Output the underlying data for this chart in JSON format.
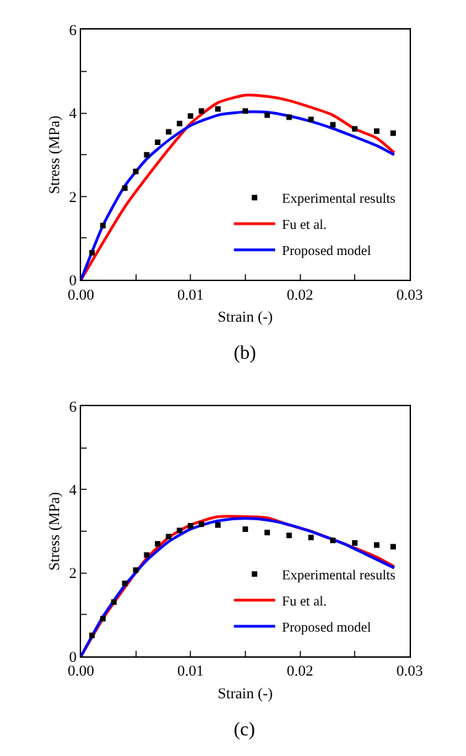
{
  "chart_data": [
    {
      "type": "line",
      "xlabel": "Strain (-)",
      "ylabel": "Stress (MPa)",
      "annotations": [
        "(b)"
      ],
      "xlim": [
        0,
        0.03
      ],
      "ylim": [
        0,
        6
      ],
      "xticks": [
        {
          "value": 0,
          "label": "0.00"
        },
        {
          "value": 0.005,
          "label": null
        },
        0.01,
        {
          "value": 0.015,
          "label": null
        },
        0.02,
        {
          "value": 0.025,
          "label": null
        },
        0.03
      ],
      "yticks": [
        0,
        {
          "value": 1,
          "label": null
        },
        2,
        {
          "value": 3,
          "label": null
        },
        4,
        {
          "value": 5,
          "label": null
        },
        6
      ],
      "legend": "bottom right",
      "series": [
        {
          "name": "Experimental results",
          "type": "scatter",
          "marker": "square",
          "color": "#000000",
          "x": [
            0.001,
            0.002,
            0.004,
            0.005,
            0.006,
            0.007,
            0.008,
            0.009,
            0.01,
            0.011,
            0.0125,
            0.015,
            0.017,
            0.019,
            0.021,
            0.023,
            0.025,
            0.027,
            0.0285
          ],
          "values": [
            0.65,
            1.3,
            2.2,
            2.6,
            3.0,
            3.3,
            3.55,
            3.75,
            3.93,
            4.05,
            4.1,
            4.05,
            3.95,
            3.9,
            3.85,
            3.72,
            3.62,
            3.57,
            3.52
          ]
        },
        {
          "name": "Fu et al.",
          "color": "#ff0000",
          "x": [
            0,
            0.004,
            0.007,
            0.009,
            0.01,
            0.0125,
            0.015,
            0.017,
            0.019,
            0.023,
            0.025,
            0.027,
            0.0286
          ],
          "values": [
            0,
            1.75,
            2.8,
            3.45,
            3.75,
            4.25,
            4.43,
            4.4,
            4.3,
            3.95,
            3.62,
            3.4,
            3.05
          ]
        },
        {
          "name": "Proposed model",
          "color": "#0000ff",
          "x": [
            0,
            0.002,
            0.004,
            0.006,
            0.008,
            0.01,
            0.0125,
            0.015,
            0.017,
            0.019,
            0.021,
            0.023,
            0.025,
            0.027,
            0.0286
          ],
          "values": [
            0,
            1.3,
            2.25,
            2.9,
            3.35,
            3.7,
            3.95,
            4.03,
            4.02,
            3.93,
            3.8,
            3.63,
            3.43,
            3.22,
            3.0
          ]
        }
      ]
    },
    {
      "type": "line",
      "xlabel": "Strain (-)",
      "ylabel": "Stress (MPa)",
      "annotations": [
        "(c)"
      ],
      "xlim": [
        0,
        0.03
      ],
      "ylim": [
        0,
        6
      ],
      "xticks": [
        {
          "value": 0,
          "label": "0.00"
        },
        {
          "value": 0.005,
          "label": null
        },
        0.01,
        {
          "value": 0.015,
          "label": null
        },
        0.02,
        {
          "value": 0.025,
          "label": null
        },
        0.03
      ],
      "yticks": [
        0,
        {
          "value": 1,
          "label": null
        },
        2,
        {
          "value": 3,
          "label": null
        },
        4,
        {
          "value": 5,
          "label": null
        },
        6
      ],
      "legend": "bottom right",
      "series": [
        {
          "name": "Experimental results",
          "type": "scatter",
          "marker": "square",
          "color": "#000000",
          "x": [
            0.001,
            0.002,
            0.003,
            0.004,
            0.005,
            0.006,
            0.007,
            0.008,
            0.009,
            0.01,
            0.011,
            0.0125,
            0.015,
            0.017,
            0.019,
            0.021,
            0.023,
            0.025,
            0.027,
            0.0285
          ],
          "values": [
            0.5,
            0.9,
            1.3,
            1.75,
            2.07,
            2.43,
            2.7,
            2.87,
            3.02,
            3.13,
            3.17,
            3.15,
            3.05,
            2.97,
            2.9,
            2.85,
            2.78,
            2.72,
            2.67,
            2.63
          ]
        },
        {
          "name": "Fu et al.",
          "color": "#ff0000",
          "x": [
            0,
            0.002,
            0.004,
            0.006,
            0.008,
            0.01,
            0.0125,
            0.015,
            0.017,
            0.019,
            0.021,
            0.023,
            0.025,
            0.027,
            0.0286
          ],
          "values": [
            0,
            0.9,
            1.65,
            2.35,
            2.85,
            3.15,
            3.35,
            3.35,
            3.32,
            3.15,
            3.0,
            2.8,
            2.6,
            2.38,
            2.15
          ]
        },
        {
          "name": "Proposed model",
          "color": "#0000ff",
          "x": [
            0,
            0.002,
            0.004,
            0.006,
            0.008,
            0.01,
            0.012,
            0.014,
            0.016,
            0.018,
            0.02,
            0.022,
            0.024,
            0.026,
            0.0286
          ],
          "values": [
            0,
            0.95,
            1.7,
            2.3,
            2.75,
            3.05,
            3.22,
            3.3,
            3.3,
            3.22,
            3.08,
            2.9,
            2.7,
            2.45,
            2.12
          ]
        }
      ]
    }
  ]
}
